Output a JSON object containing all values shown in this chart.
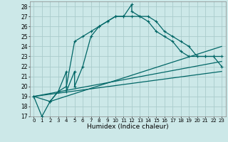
{
  "title": "",
  "xlabel": "Humidex (Indice chaleur)",
  "ylabel": "",
  "bg_color": "#cce8e8",
  "grid_color": "#aacccc",
  "line_color": "#006666",
  "xlim": [
    -0.5,
    23.5
  ],
  "ylim": [
    17,
    28.5
  ],
  "yticks": [
    17,
    18,
    19,
    20,
    21,
    22,
    23,
    24,
    25,
    26,
    27,
    28
  ],
  "xticks": [
    0,
    1,
    2,
    3,
    4,
    5,
    6,
    7,
    8,
    9,
    10,
    11,
    12,
    13,
    14,
    15,
    16,
    17,
    18,
    19,
    20,
    21,
    22,
    23
  ],
  "series1_x": [
    0,
    1,
    2,
    3,
    4,
    4,
    5,
    5,
    6,
    7,
    8,
    9,
    10,
    11,
    12,
    12,
    13,
    14,
    15,
    16,
    17,
    18,
    19,
    20,
    21,
    22,
    23
  ],
  "series1_y": [
    19,
    17,
    18.5,
    19.5,
    21.5,
    19.5,
    21.5,
    20,
    22,
    25,
    26,
    26.5,
    27,
    27,
    28.2,
    27.5,
    27,
    27,
    26.5,
    25.5,
    25,
    24.5,
    24,
    23,
    23,
    23,
    22
  ],
  "series2_x": [
    0,
    2,
    3,
    4,
    5,
    6,
    7,
    8,
    9,
    10,
    11,
    12,
    13,
    14,
    15,
    16,
    17,
    18,
    19,
    20,
    21,
    22,
    23
  ],
  "series2_y": [
    19,
    18.5,
    19.5,
    20,
    24.5,
    25,
    25.5,
    26,
    26.5,
    27,
    27,
    27,
    27,
    26.5,
    25.5,
    25,
    24.5,
    23.5,
    23,
    23,
    23,
    23,
    23
  ],
  "series3_x": [
    0,
    23
  ],
  "series3_y": [
    19,
    21.5
  ],
  "series4_x": [
    0,
    23
  ],
  "series4_y": [
    19,
    22.5
  ],
  "series5_x": [
    2,
    23
  ],
  "series5_y": [
    18.5,
    24.0
  ]
}
